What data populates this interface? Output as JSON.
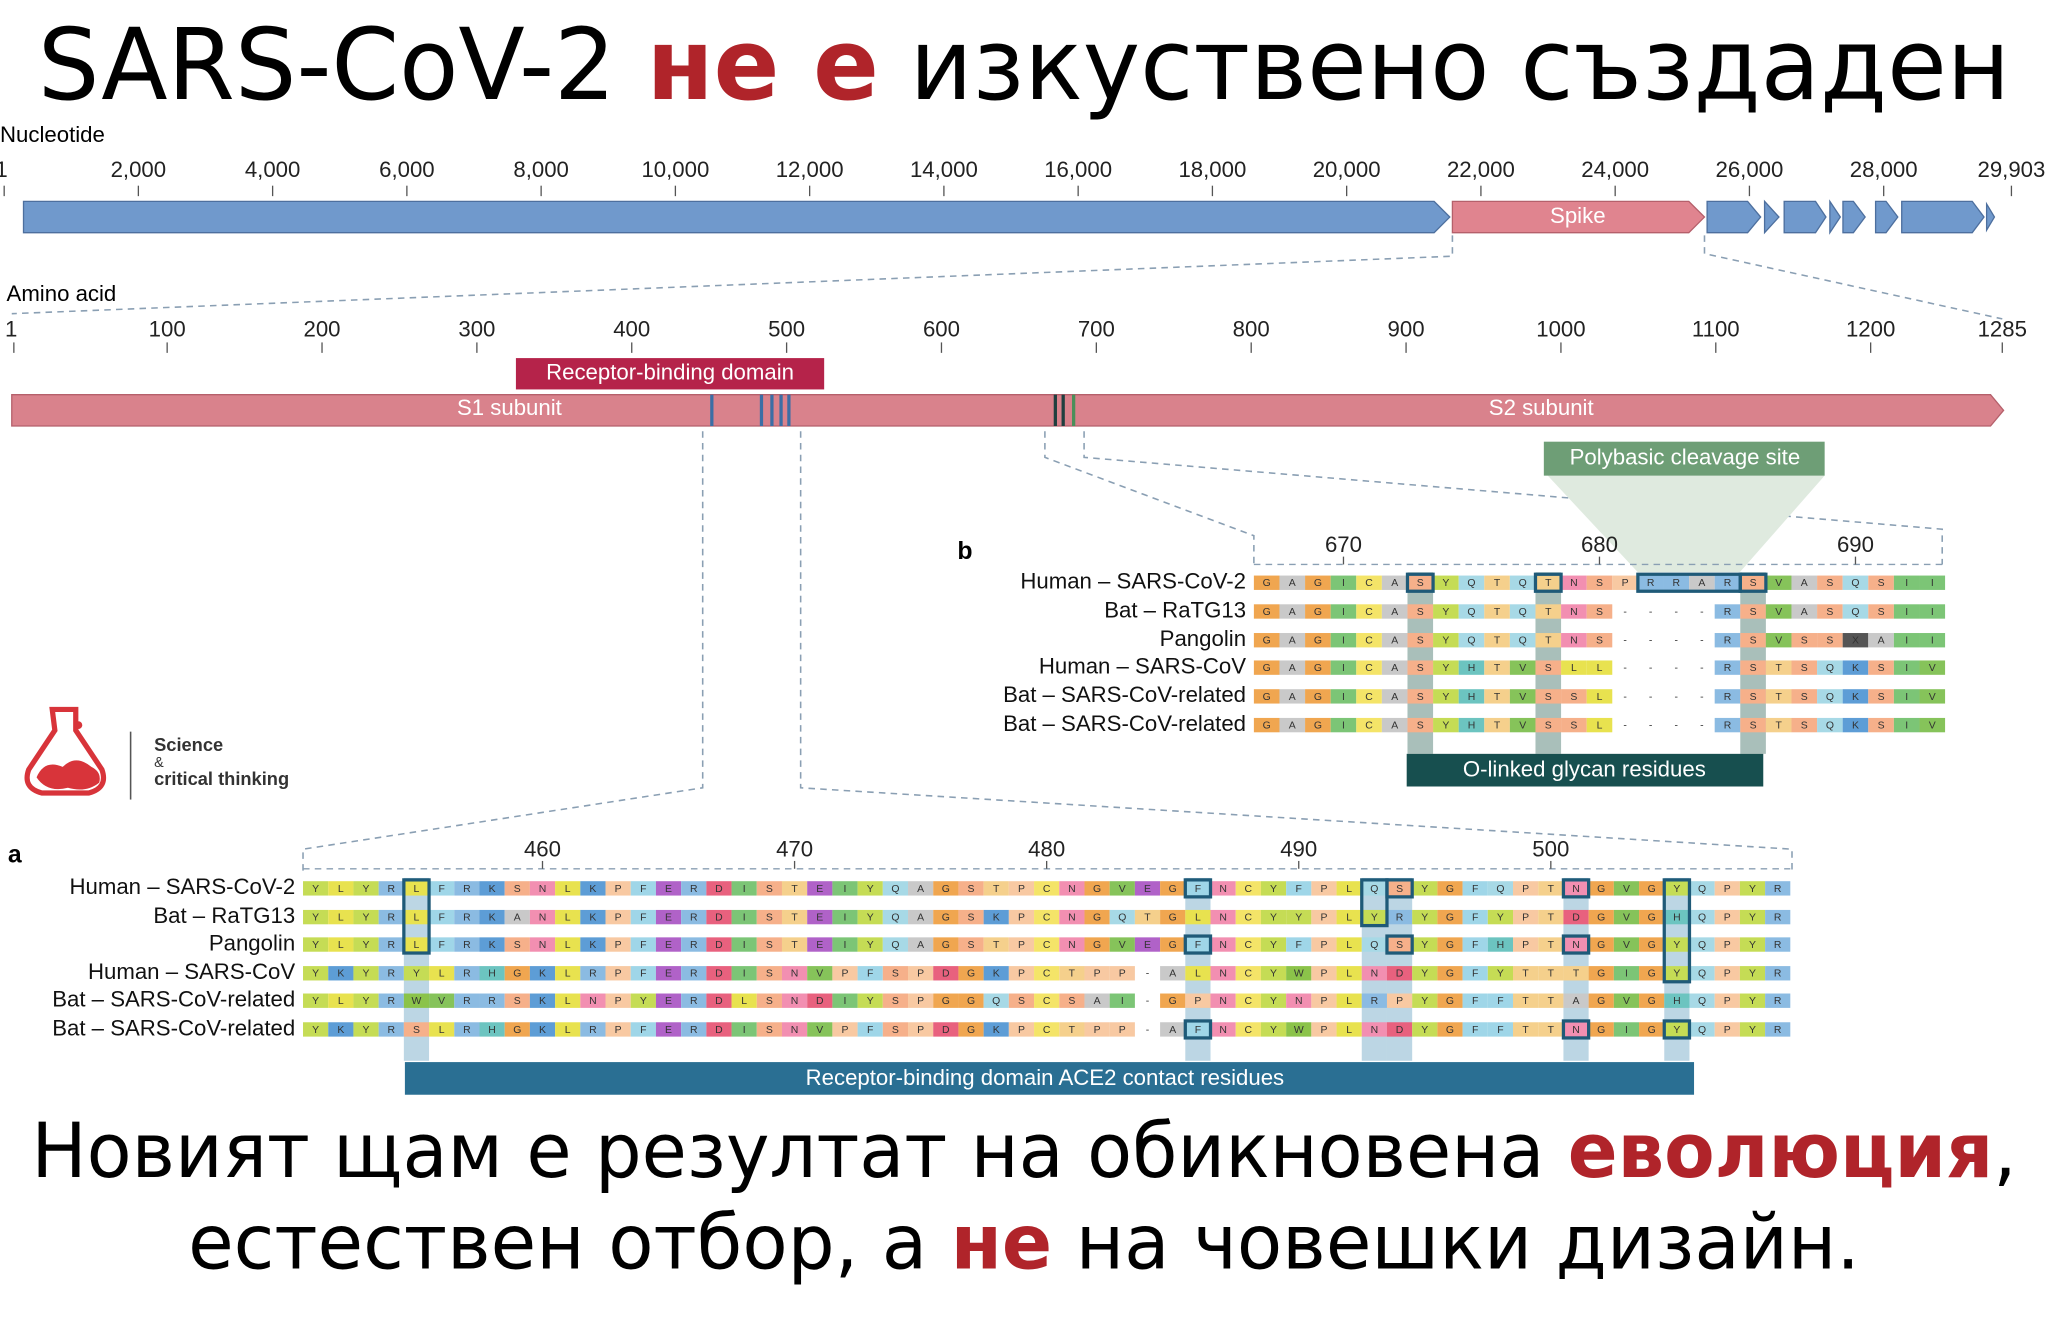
{
  "title": {
    "part1": "SARS-CoV-2",
    "part2": "не е",
    "part3": "изкуствено създаден"
  },
  "nucleotide_track": {
    "label": "Nucleotide",
    "ticks": [
      1,
      {
        "value": 2000,
        "label": "2,000"
      },
      {
        "value": 4000,
        "label": "4,000"
      },
      {
        "value": 6000,
        "label": "6,000"
      },
      {
        "value": 8000,
        "label": "8,000"
      },
      {
        "value": 10000,
        "label": "10,000"
      },
      {
        "value": 12000,
        "label": "12,000"
      },
      {
        "value": 14000,
        "label": "14,000"
      },
      {
        "value": 16000,
        "label": "16,000"
      },
      {
        "value": 18000,
        "label": "18,000"
      },
      {
        "value": 20000,
        "label": "20,000"
      },
      {
        "value": 22000,
        "label": "22,000"
      },
      {
        "value": 24000,
        "label": "24,000"
      },
      {
        "value": 26000,
        "label": "26,000"
      },
      {
        "value": 28000,
        "label": "28,000"
      },
      {
        "value": 29903,
        "label": "29,903"
      }
    ],
    "spike_label": "Spike"
  },
  "amino_acid_track": {
    "label": "Amino acid",
    "ticks": [
      1,
      100,
      200,
      300,
      400,
      500,
      600,
      700,
      800,
      900,
      1000,
      1100,
      1200,
      1285
    ],
    "rbd_label": "Receptor-binding domain",
    "s1_label": "S1 subunit",
    "s2_label": "S2 subunit"
  },
  "panel_b": {
    "letter": "b",
    "ruler": [
      670,
      680,
      690
    ],
    "rows": [
      {
        "name": "Human – SARS-CoV-2",
        "sequence": "GAGICASYQTQTNSPRRARSVASQSII"
      },
      {
        "name": "Bat – RaTG13",
        "sequence": "GAGICASYQTQTNS----RSVASQSII"
      },
      {
        "name": "Pangolin",
        "sequence": "GAGICASYQTQTNS----RSVSSXAII"
      },
      {
        "name": "Human – SARS-CoV",
        "sequence": "GAGICASYHTVSLL----RSTSQKSIV"
      },
      {
        "name": "Bat – SARS-CoV-related",
        "sequence": "GAGICASYHTVSSL----RSTSQKSIV"
      },
      {
        "name": "Bat – SARS-CoV-related",
        "sequence": "GAGICASYHTVSSL----RSTSQKSIV"
      }
    ],
    "cleavage_label": "Polybasic cleavage site",
    "glycan_label": "O-linked glycan residues"
  },
  "panel_a": {
    "letter": "a",
    "ruler": [
      460,
      470,
      480,
      490,
      500
    ],
    "rows": [
      {
        "name": "Human – SARS-CoV-2",
        "sequence": "YLYRLFRKSNLKPFERDISTEIYQAGSTPCNGVEGFNCYFPLQSYGFQPTNGVGYQPYR"
      },
      {
        "name": "Bat – RaTG13",
        "sequence": "YLYRLFRKANLKPFERDISTEIYQAGSKPCNGQTGLNCYYPLYRYGFYPTDGVGHQPYR"
      },
      {
        "name": "Pangolin",
        "sequence": "YLYRLFRKSNLKPFERDISTEIYQAGSTPCNGVEGFNCYFPLQSYGFHPTNGVGYQPYR"
      },
      {
        "name": "Human – SARS-CoV",
        "sequence": "YKYRYLRHGKLRPFERDISNVPFSPDGKPCTPP-ALNCYWPLNDYGFYTTTGIGYQPYR"
      },
      {
        "name": "Bat – SARS-CoV-related",
        "sequence": "YLYRWVRRSKLNPYERDLSNDIYSPGGQSCSAI-GPNCYNPLRPYGFFTTAGVGHQPYR"
      },
      {
        "name": "Bat – SARS-CoV-related",
        "sequence": "YKYRSLRHGKLRPFERDISNVPFSPDGKPCTPP-AFNCYWPLNDYGFFTTNGIGYQPYR"
      }
    ],
    "contact_label": "Receptor-binding domain ACE2 contact residues"
  },
  "logo": {
    "line1": "Science",
    "line2": "&",
    "line3": "critical thinking"
  },
  "footer": {
    "line1_a": "Новият щам е резултат на обикновена ",
    "line1_b": "еволюция",
    "line1_c": ",",
    "line2_a": "естествен отбор, а ",
    "line2_b": "не",
    "line2_c": " на човешки дизайн."
  }
}
